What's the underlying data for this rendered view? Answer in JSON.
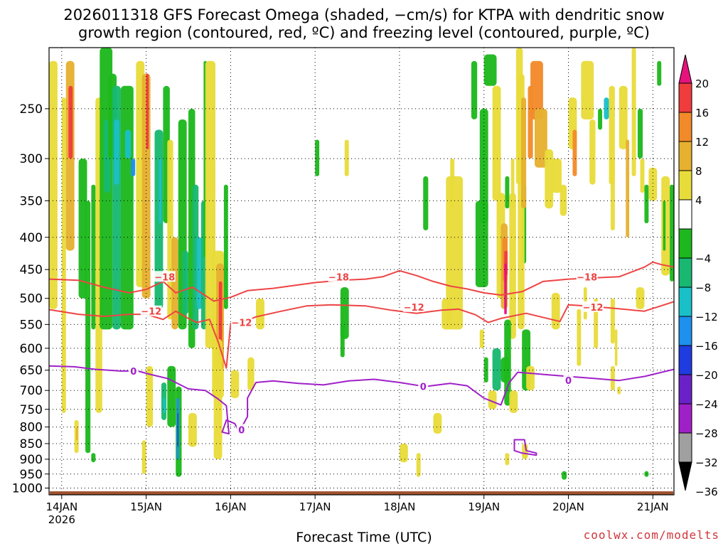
{
  "title_line1": "2026011318 GFS Forecast Omega (shaded, −cm/s) for KTPA with dendritic snow",
  "title_line2": "growth region (contoured, red, ºC) and freezing level (contoured, purple, ºC)",
  "credit": "coolwx.com/modelts",
  "chart_data": {
    "type": "heatmap",
    "title": "2026011318 GFS Forecast Omega (shaded, −cm/s) for KTPA with dendritic snow growth region (contoured, red, ºC) and freezing level (contoured, purple, ºC)",
    "xlabel": "Forecast Time (UTC)",
    "ylabel": "",
    "x_ticks": [
      "14JAN",
      "15JAN",
      "16JAN",
      "17JAN",
      "18JAN",
      "19JAN",
      "20JAN",
      "21JAN"
    ],
    "x_year_label": "2026",
    "x_range": [
      -0.15,
      7.25
    ],
    "y_ticks": [
      250,
      300,
      350,
      400,
      450,
      500,
      550,
      600,
      650,
      700,
      750,
      800,
      850,
      900,
      950,
      1000
    ],
    "y_range": [
      200,
      1025
    ],
    "y_scale": "log",
    "y_reversed": true,
    "grid": true,
    "colorbar": {
      "labels": [
        "20",
        "16",
        "12",
        "8",
        "4",
        "−4",
        "−8",
        "−12",
        "−16",
        "−20",
        "−24",
        "−28",
        "−32",
        "−36"
      ],
      "bins": [
        {
          "min": 20,
          "max": null,
          "color": "#e8127e"
        },
        {
          "min": 16,
          "max": 20,
          "color": "#f03c3c"
        },
        {
          "min": 12,
          "max": 16,
          "color": "#f28a2a"
        },
        {
          "min": 8,
          "max": 12,
          "color": "#e6b030"
        },
        {
          "min": 4,
          "max": 8,
          "color": "#e8dc3a"
        },
        {
          "min": -4,
          "max": 4,
          "color": "#ffffff"
        },
        {
          "min": -8,
          "max": -4,
          "color": "#1db81d"
        },
        {
          "min": -12,
          "max": -8,
          "color": "#18b870"
        },
        {
          "min": -16,
          "max": -12,
          "color": "#1ac0c8"
        },
        {
          "min": -20,
          "max": -16,
          "color": "#1e90ee"
        },
        {
          "min": -24,
          "max": -20,
          "color": "#1e3ce0"
        },
        {
          "min": -28,
          "max": -24,
          "color": "#6a22c8"
        },
        {
          "min": -32,
          "max": -28,
          "color": "#a020c8"
        },
        {
          "min": -36,
          "max": -32,
          "color": "#a0a0a0"
        },
        {
          "min": null,
          "max": -36,
          "color": "#000000"
        }
      ]
    },
    "contours": [
      {
        "level": -18,
        "label": "−18",
        "color": "#ee4444",
        "points": [
          [
            -0.15,
            466
          ],
          [
            0.2,
            468
          ],
          [
            0.5,
            480
          ],
          [
            0.8,
            490
          ],
          [
            1.0,
            484
          ],
          [
            1.2,
            470
          ],
          [
            1.35,
            490
          ],
          [
            1.55,
            480
          ],
          [
            1.8,
            505
          ],
          [
            2.0,
            498
          ],
          [
            2.2,
            486
          ],
          [
            2.5,
            482
          ],
          [
            2.8,
            476
          ],
          [
            3.0,
            472
          ],
          [
            3.3,
            468
          ],
          [
            3.6,
            466
          ],
          [
            3.8,
            462
          ],
          [
            4.0,
            452
          ],
          [
            4.2,
            460
          ],
          [
            4.4,
            470
          ],
          [
            4.6,
            478
          ],
          [
            4.8,
            483
          ],
          [
            5.0,
            490
          ],
          [
            5.2,
            494
          ],
          [
            5.45,
            488
          ],
          [
            5.7,
            470
          ],
          [
            6.0,
            466
          ],
          [
            6.3,
            464
          ],
          [
            6.6,
            462
          ],
          [
            6.9,
            446
          ],
          [
            7.0,
            438
          ],
          [
            7.1,
            442
          ],
          [
            7.25,
            446
          ]
        ],
        "label_at": [
          [
            1.22,
            462
          ],
          [
            3.28,
            462
          ],
          [
            6.22,
            462
          ]
        ]
      },
      {
        "level": -12,
        "label": "−12",
        "color": "#ee4444",
        "points": [
          [
            -0.15,
            521
          ],
          [
            0.2,
            530
          ],
          [
            0.5,
            534
          ],
          [
            0.8,
            530
          ],
          [
            1.0,
            530
          ],
          [
            1.2,
            540
          ],
          [
            1.35,
            524
          ],
          [
            1.5,
            538
          ],
          [
            1.6,
            546
          ],
          [
            1.75,
            540
          ],
          [
            1.85,
            585
          ],
          [
            1.95,
            645
          ],
          [
            2.0,
            548
          ],
          [
            2.1,
            548
          ],
          [
            2.3,
            535
          ],
          [
            2.6,
            524
          ],
          [
            2.9,
            514
          ],
          [
            3.2,
            512
          ],
          [
            3.6,
            514
          ],
          [
            3.9,
            522
          ],
          [
            4.2,
            528
          ],
          [
            4.5,
            522
          ],
          [
            4.7,
            520
          ],
          [
            4.9,
            531
          ],
          [
            5.05,
            546
          ],
          [
            5.2,
            538
          ],
          [
            5.5,
            528
          ],
          [
            5.9,
            544
          ],
          [
            6.0,
            512
          ],
          [
            6.2,
            514
          ],
          [
            6.5,
            518
          ],
          [
            6.9,
            524
          ],
          [
            7.25,
            506
          ]
        ],
        "label_at": [
          [
            1.06,
            524
          ],
          [
            2.13,
            546
          ],
          [
            4.17,
            516
          ],
          [
            6.29,
            516
          ]
        ]
      },
      {
        "level": 0,
        "label": "0",
        "color": "#a020c8",
        "points": [
          [
            -0.15,
            640
          ],
          [
            0.15,
            642
          ],
          [
            0.4,
            648
          ],
          [
            0.7,
            652
          ],
          [
            0.9,
            652
          ],
          [
            1.05,
            660
          ],
          [
            1.25,
            670
          ],
          [
            1.35,
            680
          ],
          [
            1.5,
            696
          ],
          [
            1.7,
            700
          ],
          [
            1.85,
            722
          ],
          [
            1.95,
            740
          ],
          [
            1.98,
            820
          ],
          [
            1.9,
            815
          ],
          [
            1.95,
            780
          ],
          [
            2.05,
            790
          ],
          [
            2.1,
            815
          ],
          [
            2.2,
            770
          ],
          [
            2.2,
            720
          ],
          [
            2.3,
            680
          ],
          [
            2.5,
            676
          ],
          [
            2.8,
            682
          ],
          [
            3.1,
            686
          ],
          [
            3.4,
            676
          ],
          [
            3.7,
            672
          ],
          [
            4.0,
            680
          ],
          [
            4.3,
            690
          ],
          [
            4.6,
            682
          ],
          [
            4.8,
            688
          ],
          [
            5.0,
            720
          ],
          [
            5.2,
            738
          ],
          [
            5.3,
            680
          ],
          [
            5.4,
            655
          ],
          [
            5.7,
            660
          ],
          [
            6.0,
            665
          ],
          [
            6.3,
            670
          ],
          [
            6.6,
            675
          ],
          [
            6.9,
            665
          ],
          [
            7.25,
            648
          ]
        ],
        "label_at": [
          [
            0.85,
            652
          ],
          [
            2.13,
            808
          ],
          [
            4.28,
            690
          ],
          [
            6.0,
            675
          ]
        ]
      },
      {
        "level": 0,
        "label": "",
        "color": "#a020c8",
        "points": [
          [
            5.45,
            880
          ],
          [
            5.36,
            872
          ],
          [
            5.36,
            838
          ],
          [
            5.48,
            838
          ],
          [
            5.5,
            872
          ],
          [
            5.62,
            880
          ],
          [
            5.62,
            887
          ],
          [
            5.45,
            880
          ]
        ],
        "label_at": []
      }
    ]
  }
}
